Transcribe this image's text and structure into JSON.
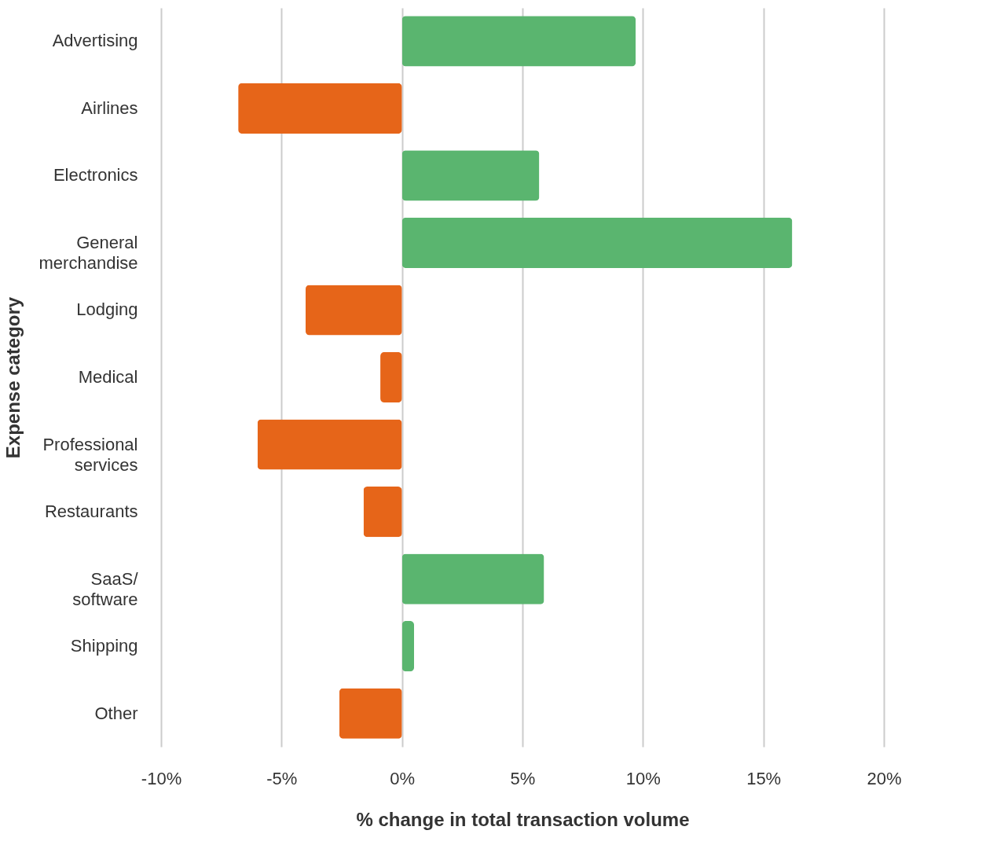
{
  "chart_data": {
    "type": "bar",
    "orientation": "horizontal",
    "xlabel": "% change in total transaction volume",
    "ylabel": "Expense category",
    "categories": [
      "Advertising",
      "Airlines",
      "Electronics",
      "General\nmerchandise",
      "Lodging",
      "Medical",
      "Professional\nservices",
      "Restaurants",
      "SaaS/\nsoftware",
      "Shipping",
      "Other"
    ],
    "values": [
      9.7,
      -6.8,
      5.7,
      16.2,
      -4.0,
      -0.9,
      -6.0,
      -1.6,
      5.9,
      0.5,
      -2.6
    ],
    "colors": [
      "#5ab56f",
      "#e66519",
      "#5ab56f",
      "#5ab56f",
      "#e66519",
      "#e66519",
      "#e66519",
      "#e66519",
      "#5ab56f",
      "#5ab56f",
      "#e66519"
    ],
    "xlim": [
      -10,
      20
    ],
    "xticks": [
      {
        "value": -10,
        "label": "-10%"
      },
      {
        "value": -5,
        "label": "-5%"
      },
      {
        "value": 0,
        "label": "0%"
      },
      {
        "value": 5,
        "label": "5%"
      },
      {
        "value": 10,
        "label": "10%"
      },
      {
        "value": 15,
        "label": "15%"
      },
      {
        "value": 20,
        "label": "20%"
      }
    ],
    "grid": "x"
  }
}
